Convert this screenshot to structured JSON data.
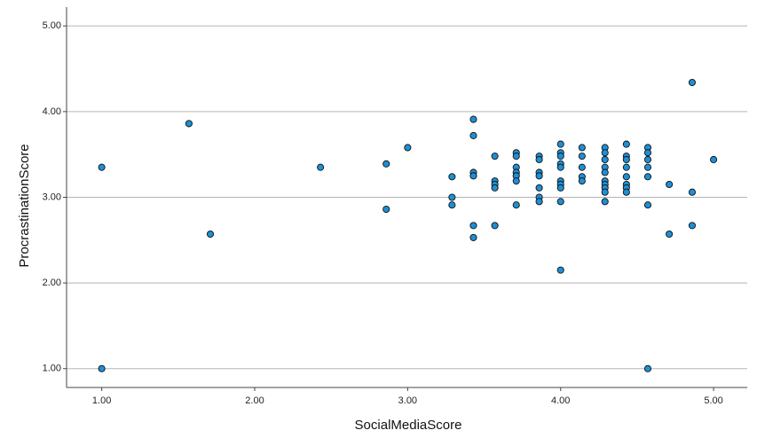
{
  "chart_data": {
    "type": "scatter",
    "x_label": "SocialMediaScore",
    "y_label": "ProcrastinationScore",
    "xlim": [
      0.77,
      5.22
    ],
    "ylim": [
      0.78,
      5.22
    ],
    "xticks": [
      {
        "value": 1,
        "label": "1.00"
      },
      {
        "value": 2,
        "label": "2.00"
      },
      {
        "value": 3,
        "label": "3.00"
      },
      {
        "value": 4,
        "label": "4.00"
      },
      {
        "value": 5,
        "label": "5.00"
      }
    ],
    "yticks": [
      {
        "value": 1,
        "label": "1.00"
      },
      {
        "value": 2,
        "label": "2.00"
      },
      {
        "value": 3,
        "label": "3.00"
      },
      {
        "value": 4,
        "label": "4.00"
      },
      {
        "value": 5,
        "label": "5.00"
      }
    ],
    "grid": "y",
    "color": "#1e8fd5",
    "edge_color": "#111111",
    "x": [
      1,
      1,
      1.57,
      1.71,
      2.43,
      2.86,
      2.86,
      3,
      3.29,
      3.29,
      3.29,
      3.43,
      3.43,
      3.43,
      3.43,
      3.43,
      3.43,
      3.57,
      3.57,
      3.57,
      3.57,
      3.57,
      3.71,
      3.71,
      3.71,
      3.71,
      3.71,
      3.71,
      3.71,
      3.86,
      3.86,
      3.86,
      3.86,
      3.86,
      3.86,
      3.86,
      4,
      4,
      4,
      4,
      4,
      4,
      4,
      4,
      4,
      4,
      4.14,
      4.14,
      4.14,
      4.14,
      4.14,
      4.29,
      4.29,
      4.29,
      4.29,
      4.29,
      4.29,
      4.29,
      4.29,
      4.29,
      4.29,
      4.43,
      4.43,
      4.43,
      4.43,
      4.43,
      4.43,
      4.43,
      4.43,
      4.57,
      4.57,
      4.57,
      4.57,
      4.57,
      4.57,
      4.57,
      4.71,
      4.71,
      4.86,
      4.86,
      4.86,
      5
    ],
    "values": [
      3.35,
      1,
      3.86,
      2.57,
      3.35,
      3.39,
      2.86,
      3.58,
      3.24,
      3,
      2.91,
      3.91,
      3.72,
      3.29,
      3.25,
      2.67,
      2.53,
      3.48,
      3.19,
      3.15,
      3.11,
      2.67,
      3.52,
      3.48,
      3.35,
      3.29,
      3.25,
      3.19,
      2.91,
      3.48,
      3.44,
      3.29,
      3.25,
      3.11,
      3,
      2.95,
      3.62,
      3.52,
      3.48,
      3.39,
      3.35,
      3.19,
      3.15,
      3.11,
      2.95,
      2.15,
      3.58,
      3.48,
      3.35,
      3.24,
      3.19,
      3.58,
      3.52,
      3.44,
      3.35,
      3.29,
      3.19,
      3.15,
      3.11,
      3.06,
      2.95,
      3.62,
      3.48,
      3.44,
      3.35,
      3.24,
      3.15,
      3.11,
      3.06,
      3.58,
      3.52,
      3.44,
      3.35,
      3.24,
      2.91,
      1,
      3.15,
      2.57,
      4.34,
      3.06,
      2.67,
      3.44
    ]
  }
}
